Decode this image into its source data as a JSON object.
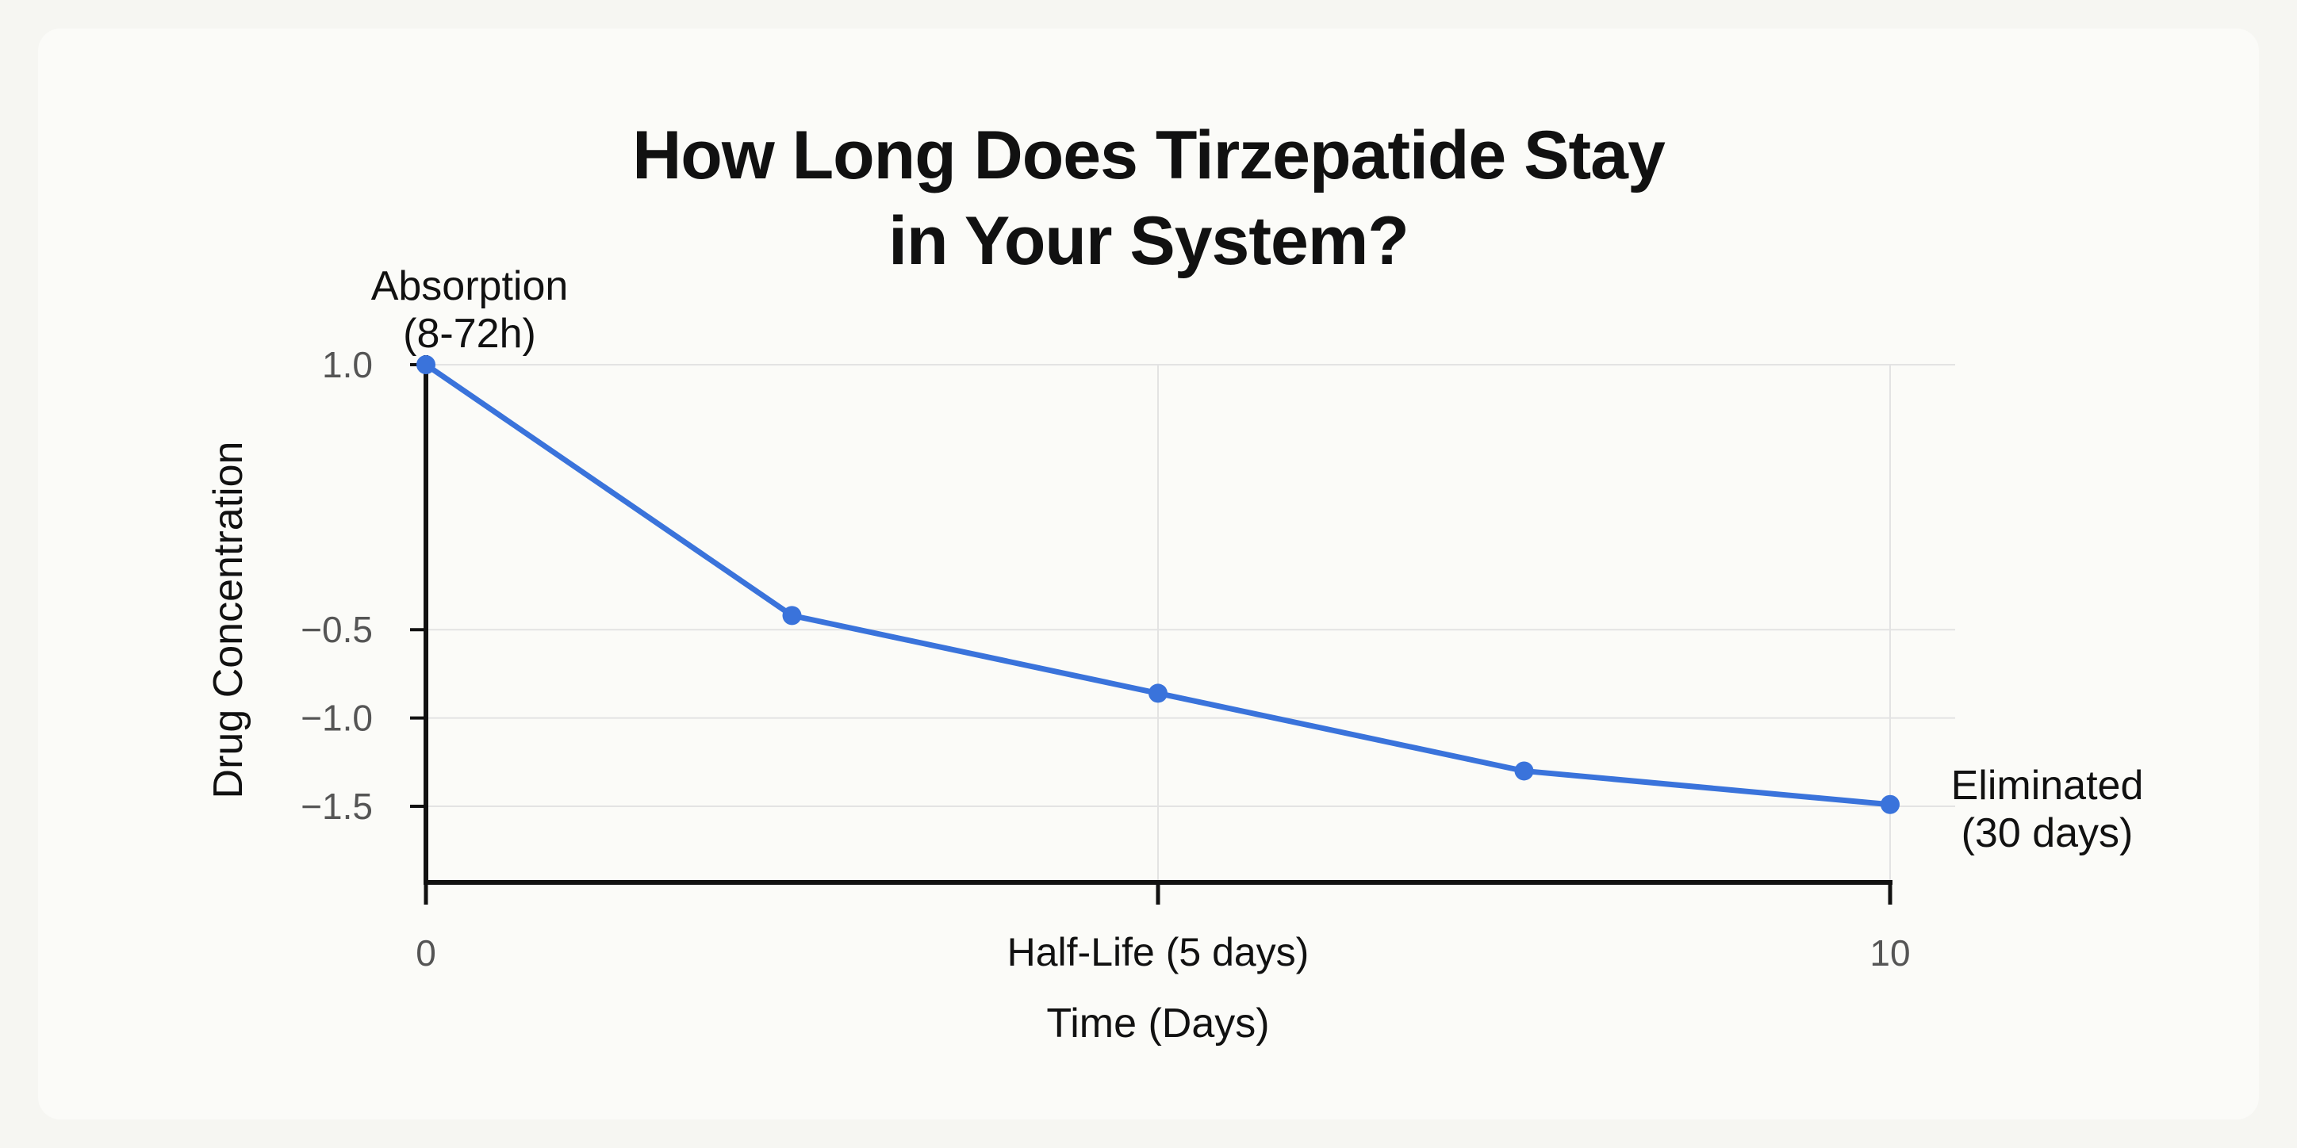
{
  "chart_data": {
    "type": "line",
    "title": [
      "How Long Does Tirzepatide Stay",
      "in Your System?"
    ],
    "xlabel": "Time (Days)",
    "ylabel": "Drug Concentration",
    "xlim": [
      0,
      10
    ],
    "ylim": [
      -1.75,
      1.0
    ],
    "grid": true,
    "legend": "none",
    "x_ticks": [
      {
        "value": 0,
        "label": "0"
      },
      {
        "value": 5,
        "label": "Half-Life (5 days)"
      },
      {
        "value": 10,
        "label": "10"
      }
    ],
    "y_ticks": [
      {
        "value": 1.0,
        "label": "1.0"
      },
      {
        "value": -0.5,
        "label": "−0.5"
      },
      {
        "value": -1.0,
        "label": "−1.0"
      },
      {
        "value": -1.5,
        "label": "−1.5"
      }
    ],
    "series": [
      {
        "color": "#3a73db",
        "x": [
          0,
          2.5,
          5,
          7.5,
          10
        ],
        "y": [
          1.0,
          -0.42,
          -0.86,
          -1.3,
          -1.49
        ]
      }
    ],
    "annotations": [
      {
        "lines": [
          "Absorption",
          "(8-72h)"
        ],
        "anchor": "first-point"
      },
      {
        "lines": [
          "Eliminated",
          "(30 days)"
        ],
        "anchor": "last-point"
      }
    ]
  }
}
